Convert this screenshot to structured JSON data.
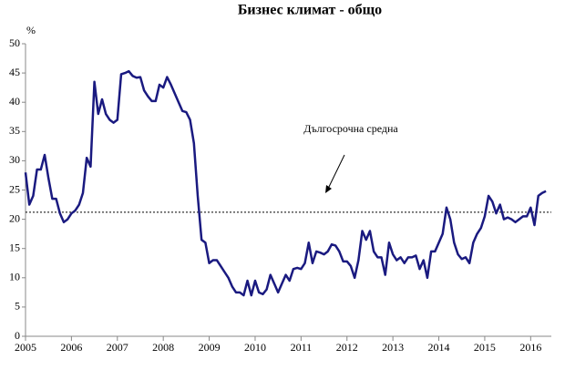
{
  "chart_data": {
    "type": "line",
    "title": "Бизнес климат - общо",
    "y_unit": "%",
    "annotation": "Дългосрочна средна",
    "average": 21.2,
    "xlim": [
      2005,
      2016.45
    ],
    "xticks": [
      2005,
      2006,
      2007,
      2008,
      2009,
      2010,
      2011,
      2012,
      2013,
      2014,
      2015,
      2016
    ],
    "ylim": [
      0,
      50
    ],
    "yticks": [
      0,
      5,
      10,
      15,
      20,
      25,
      30,
      35,
      40,
      45,
      50
    ],
    "grid": false,
    "x": [
      2005,
      2005.083,
      2005.167,
      2005.25,
      2005.333,
      2005.417,
      2005.5,
      2005.583,
      2005.667,
      2005.75,
      2005.833,
      2005.917,
      2006,
      2006.083,
      2006.167,
      2006.25,
      2006.333,
      2006.417,
      2006.5,
      2006.583,
      2006.667,
      2006.75,
      2006.833,
      2006.917,
      2007,
      2007.083,
      2007.167,
      2007.25,
      2007.333,
      2007.417,
      2007.5,
      2007.583,
      2007.667,
      2007.75,
      2007.833,
      2007.917,
      2008,
      2008.083,
      2008.167,
      2008.25,
      2008.333,
      2008.417,
      2008.5,
      2008.583,
      2008.667,
      2008.75,
      2008.833,
      2008.917,
      2009,
      2009.083,
      2009.167,
      2009.25,
      2009.333,
      2009.417,
      2009.5,
      2009.583,
      2009.667,
      2009.75,
      2009.833,
      2009.917,
      2010,
      2010.083,
      2010.167,
      2010.25,
      2010.333,
      2010.417,
      2010.5,
      2010.583,
      2010.667,
      2010.75,
      2010.833,
      2010.917,
      2011,
      2011.083,
      2011.167,
      2011.25,
      2011.333,
      2011.417,
      2011.5,
      2011.583,
      2011.667,
      2011.75,
      2011.833,
      2011.917,
      2012,
      2012.083,
      2012.167,
      2012.25,
      2012.333,
      2012.417,
      2012.5,
      2012.583,
      2012.667,
      2012.75,
      2012.833,
      2012.917,
      2013,
      2013.083,
      2013.167,
      2013.25,
      2013.333,
      2013.417,
      2013.5,
      2013.583,
      2013.667,
      2013.75,
      2013.833,
      2013.917,
      2014,
      2014.083,
      2014.167,
      2014.25,
      2014.333,
      2014.417,
      2014.5,
      2014.583,
      2014.667,
      2014.75,
      2014.833,
      2014.917,
      2015,
      2015.083,
      2015.167,
      2015.25,
      2015.333,
      2015.417,
      2015.5,
      2015.583,
      2015.667,
      2015.75,
      2015.833,
      2015.917,
      2016,
      2016.083,
      2016.167,
      2016.25,
      2016.333
    ],
    "series": [
      {
        "color": "#1a1a80",
        "values": [
          28,
          22.5,
          24,
          28.5,
          28.5,
          31,
          27,
          23.5,
          23.5,
          21,
          19.5,
          20,
          21,
          21.5,
          22.5,
          24.5,
          30.5,
          29,
          43.5,
          38,
          40.5,
          38,
          37,
          36.5,
          37,
          44.8,
          45,
          45.3,
          44.5,
          44.2,
          44.3,
          42,
          41,
          40.2,
          40.2,
          43,
          42.5,
          44.3,
          43,
          41.5,
          40,
          38.5,
          38.3,
          37,
          33,
          24,
          16.5,
          16,
          12.5,
          13,
          13,
          12,
          11,
          10,
          8.5,
          7.5,
          7.5,
          7,
          9.5,
          7,
          9.5,
          7.5,
          7.2,
          8,
          10.5,
          9,
          7.5,
          9,
          10.5,
          9.5,
          11.5,
          11.7,
          11.5,
          12.5,
          16,
          12.5,
          14.5,
          14.3,
          14,
          14.5,
          15.7,
          15.5,
          14.5,
          12.8,
          12.8,
          12,
          10,
          13,
          18,
          16.5,
          18,
          14.5,
          13.5,
          13.5,
          10.5,
          16,
          14,
          13,
          13.5,
          12.5,
          13.5,
          13.5,
          13.8,
          11.5,
          13,
          10,
          14.5,
          14.5,
          16,
          17.5,
          22,
          20,
          16,
          14,
          13.2,
          13.5,
          12.5,
          16,
          17.5,
          18.5,
          20.5,
          24,
          23,
          21,
          22.5,
          20,
          20.3,
          20,
          19.5,
          20,
          20.5,
          20.5,
          22,
          19,
          24,
          24.5,
          24.8
        ]
      }
    ]
  }
}
